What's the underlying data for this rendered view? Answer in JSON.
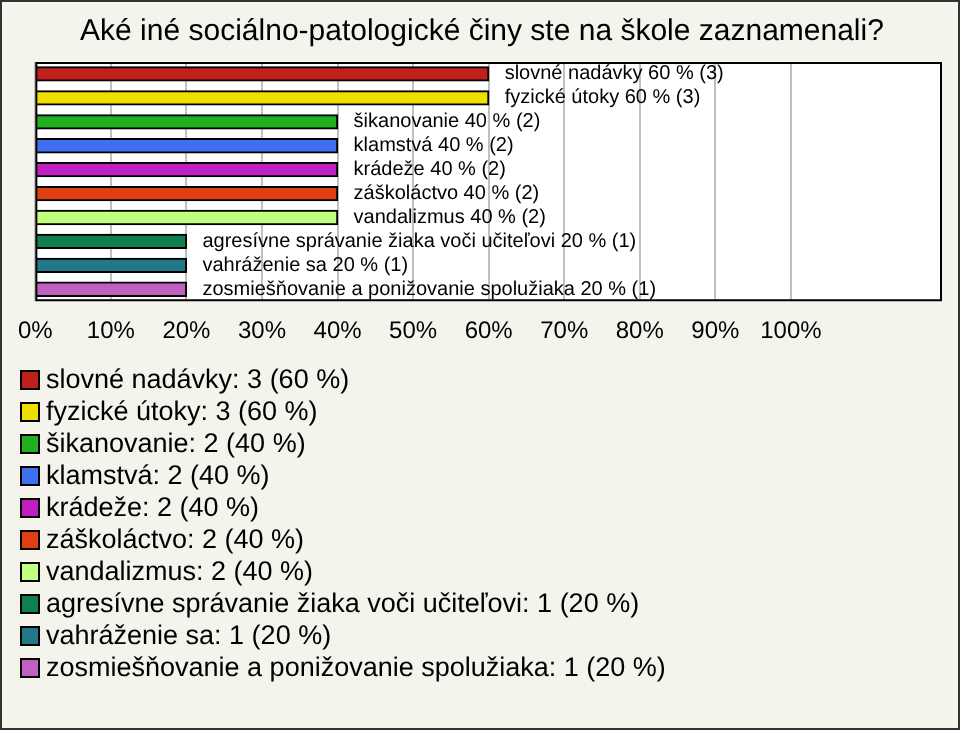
{
  "chart_data": {
    "type": "bar",
    "orientation": "horizontal",
    "title": "Aké iné sociálno-patologické činy ste na škole zaznamenali?",
    "categories": [
      "slovné nadávky",
      "fyzické útoky",
      "šikanovanie",
      "klamstvá",
      "krádeže",
      "záškoláctvo",
      "vandalizmus",
      "agresívne správanie žiaka voči učiteľovi",
      "vahráženie sa",
      "zosmiešňovanie a ponižovanie spolužiaka"
    ],
    "values": [
      60,
      60,
      40,
      40,
      40,
      40,
      40,
      20,
      20,
      20
    ],
    "value_labels": [
      "60 % (3)",
      "60 % (3)",
      "40 % (2)",
      "40 % (2)",
      "40 % (2)",
      "40 % (2)",
      "40 % (2)",
      "20 % (1)",
      "20 % (1)",
      "20 % (1)"
    ],
    "colors": [
      "#c0201a",
      "#f0e000",
      "#20b020",
      "#4070f0",
      "#c020c0",
      "#e04010",
      "#c0ff80",
      "#108050",
      "#207888",
      "#c060c0"
    ],
    "xlim": [
      0,
      120
    ],
    "xticks": [
      {
        "value": 0,
        "label": "0%"
      },
      {
        "value": 10,
        "label": "10%"
      },
      {
        "value": 20,
        "label": "20%"
      },
      {
        "value": 30,
        "label": "30%"
      },
      {
        "value": 40,
        "label": "40%"
      },
      {
        "value": 50,
        "label": "50%"
      },
      {
        "value": 60,
        "label": "60%"
      },
      {
        "value": 70,
        "label": "70%"
      },
      {
        "value": 80,
        "label": "80%"
      },
      {
        "value": 90,
        "label": "90%"
      },
      {
        "value": 100,
        "label": "100%"
      }
    ],
    "grid": "x",
    "tick_labels": "x",
    "annotations": [
      "slovné nadávky: 3 (60 %)",
      "fyzické útoky: 3 (60 %)",
      "šikanovanie: 2 (40 %)",
      "klamstvá: 2 (40 %)",
      "krádeže: 2 (40 %)",
      "záškoláctvo: 2 (40 %)",
      "vandalizmus: 2 (40 %)",
      "agresívne správanie žiaka voči učiteľovi: 1 (20 %)",
      "vahráženie sa: 1 (20 %)",
      "zosmiešňovanie a ponižovanie spolužiaka: 1 (20 %)"
    ]
  }
}
